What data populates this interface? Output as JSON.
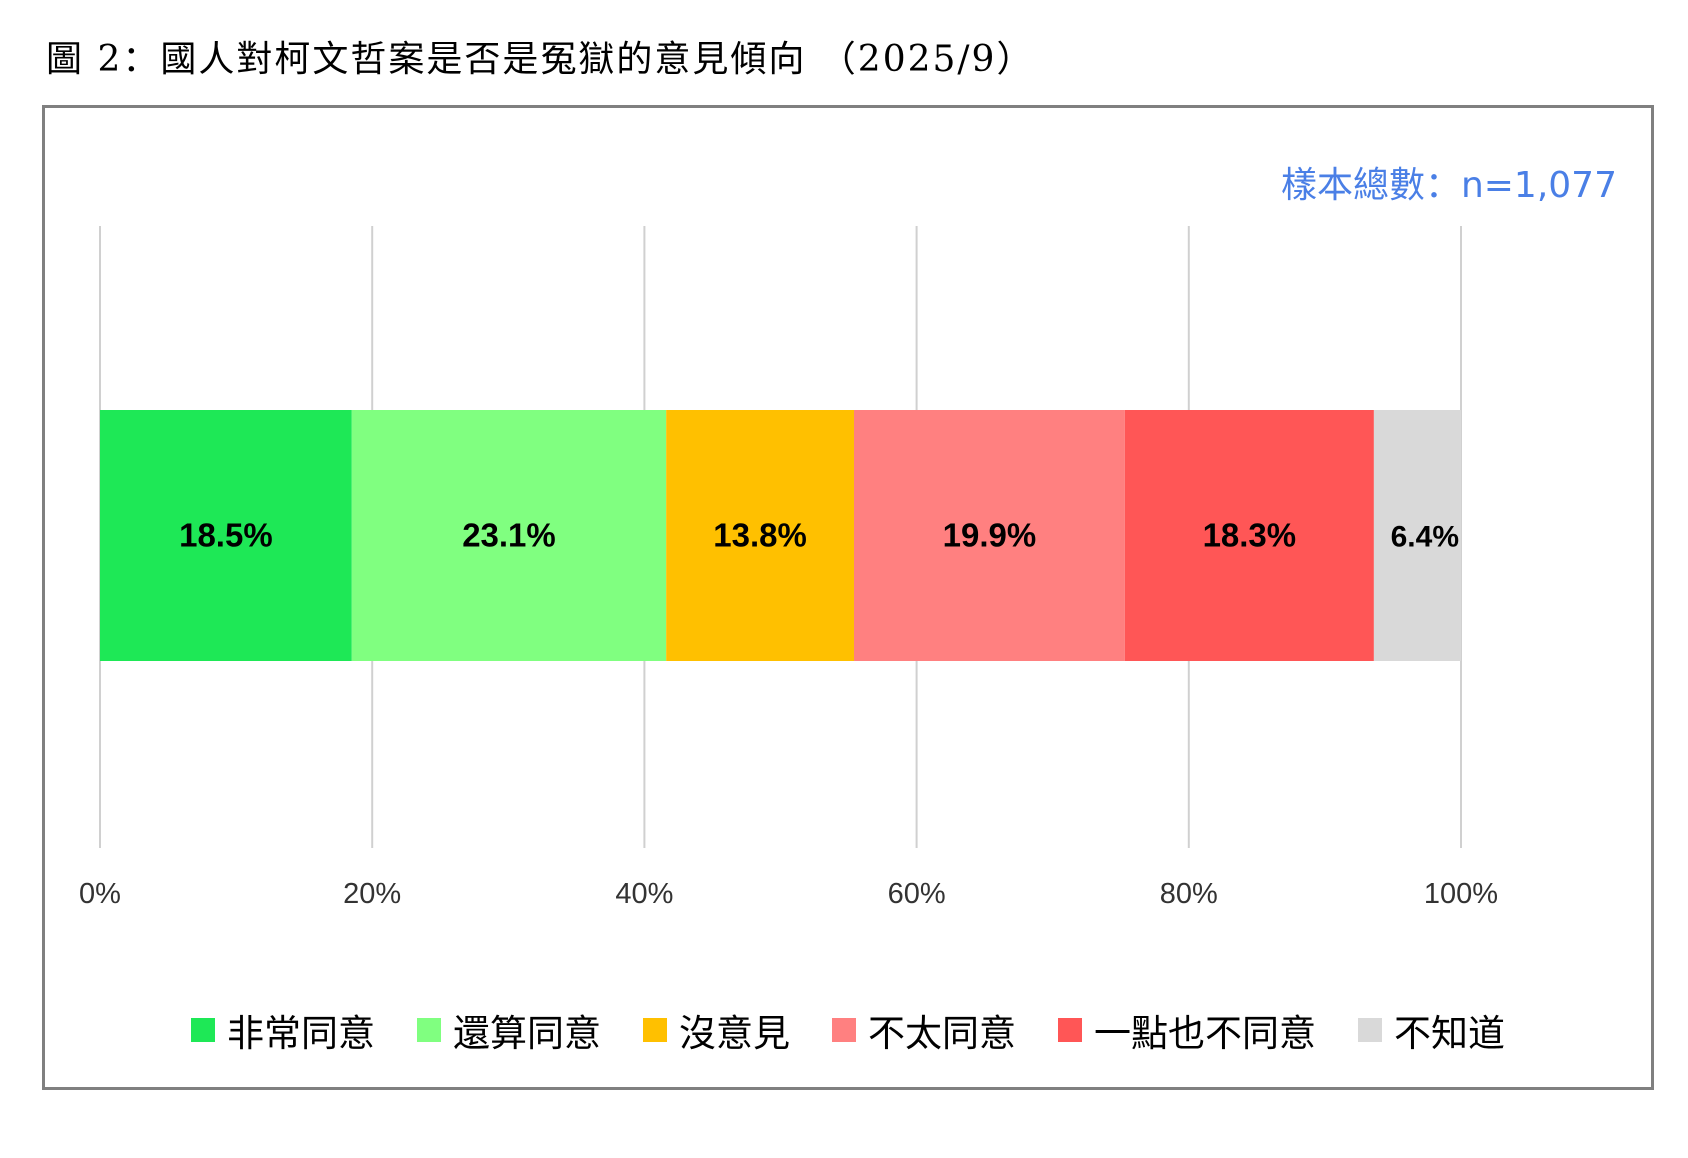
{
  "title": "圖 2：國人對柯文哲案是否是冤獄的意見傾向 （2025/9）",
  "sample_note": "樣本總數：n=1,077",
  "chart_data": {
    "type": "bar",
    "orientation": "horizontal",
    "stacked": true,
    "xlim": [
      0,
      100
    ],
    "x_ticks": [
      "0%",
      "20%",
      "40%",
      "60%",
      "80%",
      "100%"
    ],
    "grid": true,
    "legend_position": "bottom",
    "series": [
      {
        "name": "非常同意",
        "value": 18.5,
        "label": "18.5%",
        "color": "#1ee856"
      },
      {
        "name": "還算同意",
        "value": 23.1,
        "label": "23.1%",
        "color": "#80ff80"
      },
      {
        "name": "沒意見",
        "value": 13.8,
        "label": "13.8%",
        "color": "#ffc000"
      },
      {
        "name": "不太同意",
        "value": 19.9,
        "label": "19.9%",
        "color": "#ff8080"
      },
      {
        "name": "一點也不同意",
        "value": 18.3,
        "label": "18.3%",
        "color": "#ff5656"
      },
      {
        "name": "不知道",
        "value": 6.4,
        "label": "6.4%",
        "color": "#d9d9d9"
      }
    ]
  }
}
